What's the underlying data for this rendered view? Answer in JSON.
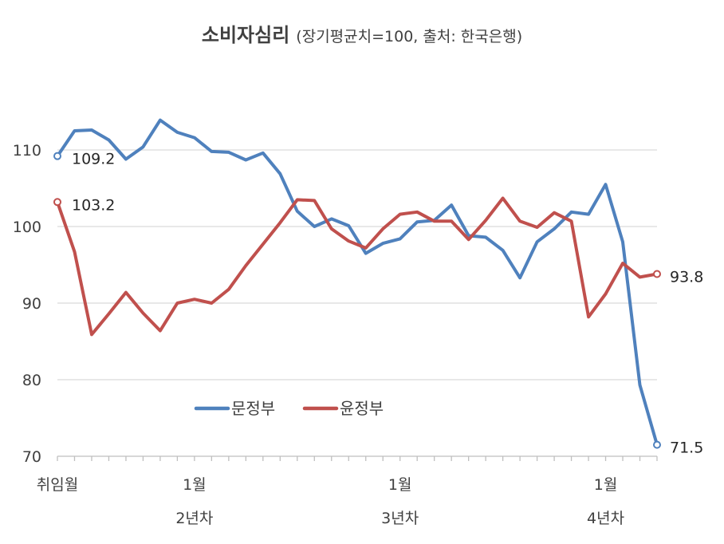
{
  "title": "소비자심리",
  "subtitle": "(장기평균치=100, 출처: 한국은행)",
  "chart_data": {
    "type": "line",
    "title": "소비자심리",
    "subtitle": "(장기평균치=100, 출처: 한국은행)",
    "ylim": [
      70,
      115
    ],
    "yticks": [
      70,
      80,
      90,
      100,
      110
    ],
    "grid": true,
    "legend_position": "lower-center",
    "x_count": 36,
    "x_tick_labels": [
      {
        "index": 0,
        "label": "취임월",
        "sublabel": ""
      },
      {
        "index": 8,
        "label": "1월",
        "sublabel": "2년차"
      },
      {
        "index": 20,
        "label": "1월",
        "sublabel": "3년차"
      },
      {
        "index": 32,
        "label": "1월",
        "sublabel": "4년차"
      }
    ],
    "series": [
      {
        "name": "문정부",
        "color": "#4f81bd",
        "values": [
          109.2,
          112.5,
          112.6,
          111.3,
          108.8,
          110.4,
          113.9,
          112.3,
          111.6,
          109.8,
          109.7,
          108.7,
          109.6,
          106.9,
          102.0,
          100.0,
          101.0,
          100.1,
          96.5,
          97.8,
          98.4,
          100.6,
          100.8,
          102.8,
          98.8,
          98.6,
          96.9,
          93.3,
          98.0,
          99.7,
          101.9,
          101.6,
          105.5,
          98.0,
          79.3,
          71.5
        ],
        "start_label": "109.2",
        "end_label": "71.5"
      },
      {
        "name": "윤정부",
        "color": "#c0504d",
        "values": [
          103.2,
          96.7,
          85.9,
          88.6,
          91.4,
          88.7,
          86.4,
          90.0,
          90.5,
          90.0,
          91.8,
          94.9,
          97.7,
          100.5,
          103.5,
          103.4,
          99.7,
          98.1,
          97.2,
          99.7,
          101.6,
          101.9,
          100.7,
          100.7,
          98.3,
          100.8,
          103.7,
          100.7,
          99.9,
          101.8,
          100.7,
          88.2,
          91.2,
          95.2,
          93.4,
          93.8
        ],
        "start_label": "103.2",
        "end_label": "93.8"
      }
    ]
  }
}
